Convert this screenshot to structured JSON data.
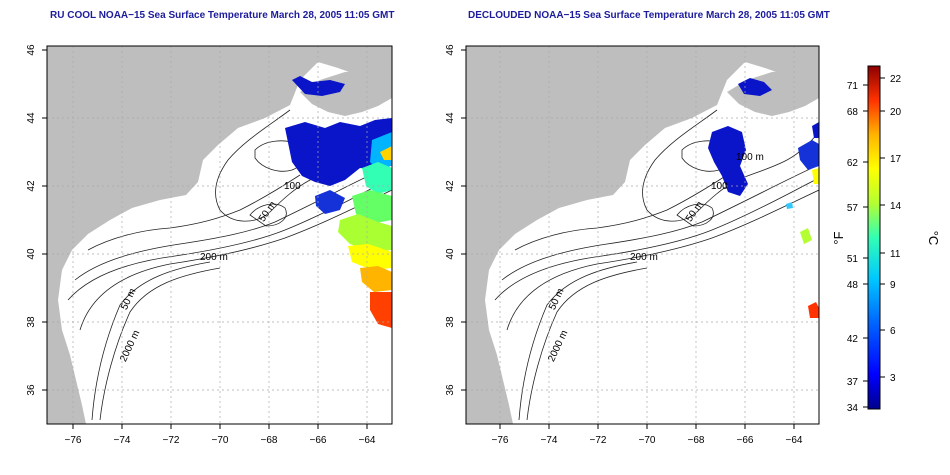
{
  "panels": [
    {
      "title": "RU COOL NOAA−15 Sea Surface Temperature March 28, 2005 11:05 GMT"
    },
    {
      "title": "DECLOUDED NOAA−15 Sea Surface Temperature March 28, 2005 11:05 GMT"
    }
  ],
  "axes": {
    "x_ticks": [
      "−76",
      "−74",
      "−72",
      "−70",
      "−68",
      "−66",
      "−64"
    ],
    "y_ticks": [
      "36",
      "38",
      "40",
      "42",
      "44",
      "46"
    ]
  },
  "contour_labels": [
    "100",
    "50 m",
    "200 m",
    "50 m",
    "2000 m"
  ],
  "contour_label_right_top": "100 m",
  "colorbar": {
    "fahrenheit_ticks": [
      "71",
      "68",
      "62",
      "57",
      "51",
      "48",
      "42",
      "37",
      "34"
    ],
    "celsius_ticks": [
      "22",
      "20",
      "17",
      "14",
      "11",
      "9",
      "6",
      "3"
    ],
    "fahrenheit_label": "°F",
    "celsius_label": "°C"
  },
  "colors": {
    "land": "#bebebe",
    "sea": "#ffffff",
    "title": "#1c1c9c",
    "cold": "#0000c8",
    "warm": "#c80000"
  }
}
